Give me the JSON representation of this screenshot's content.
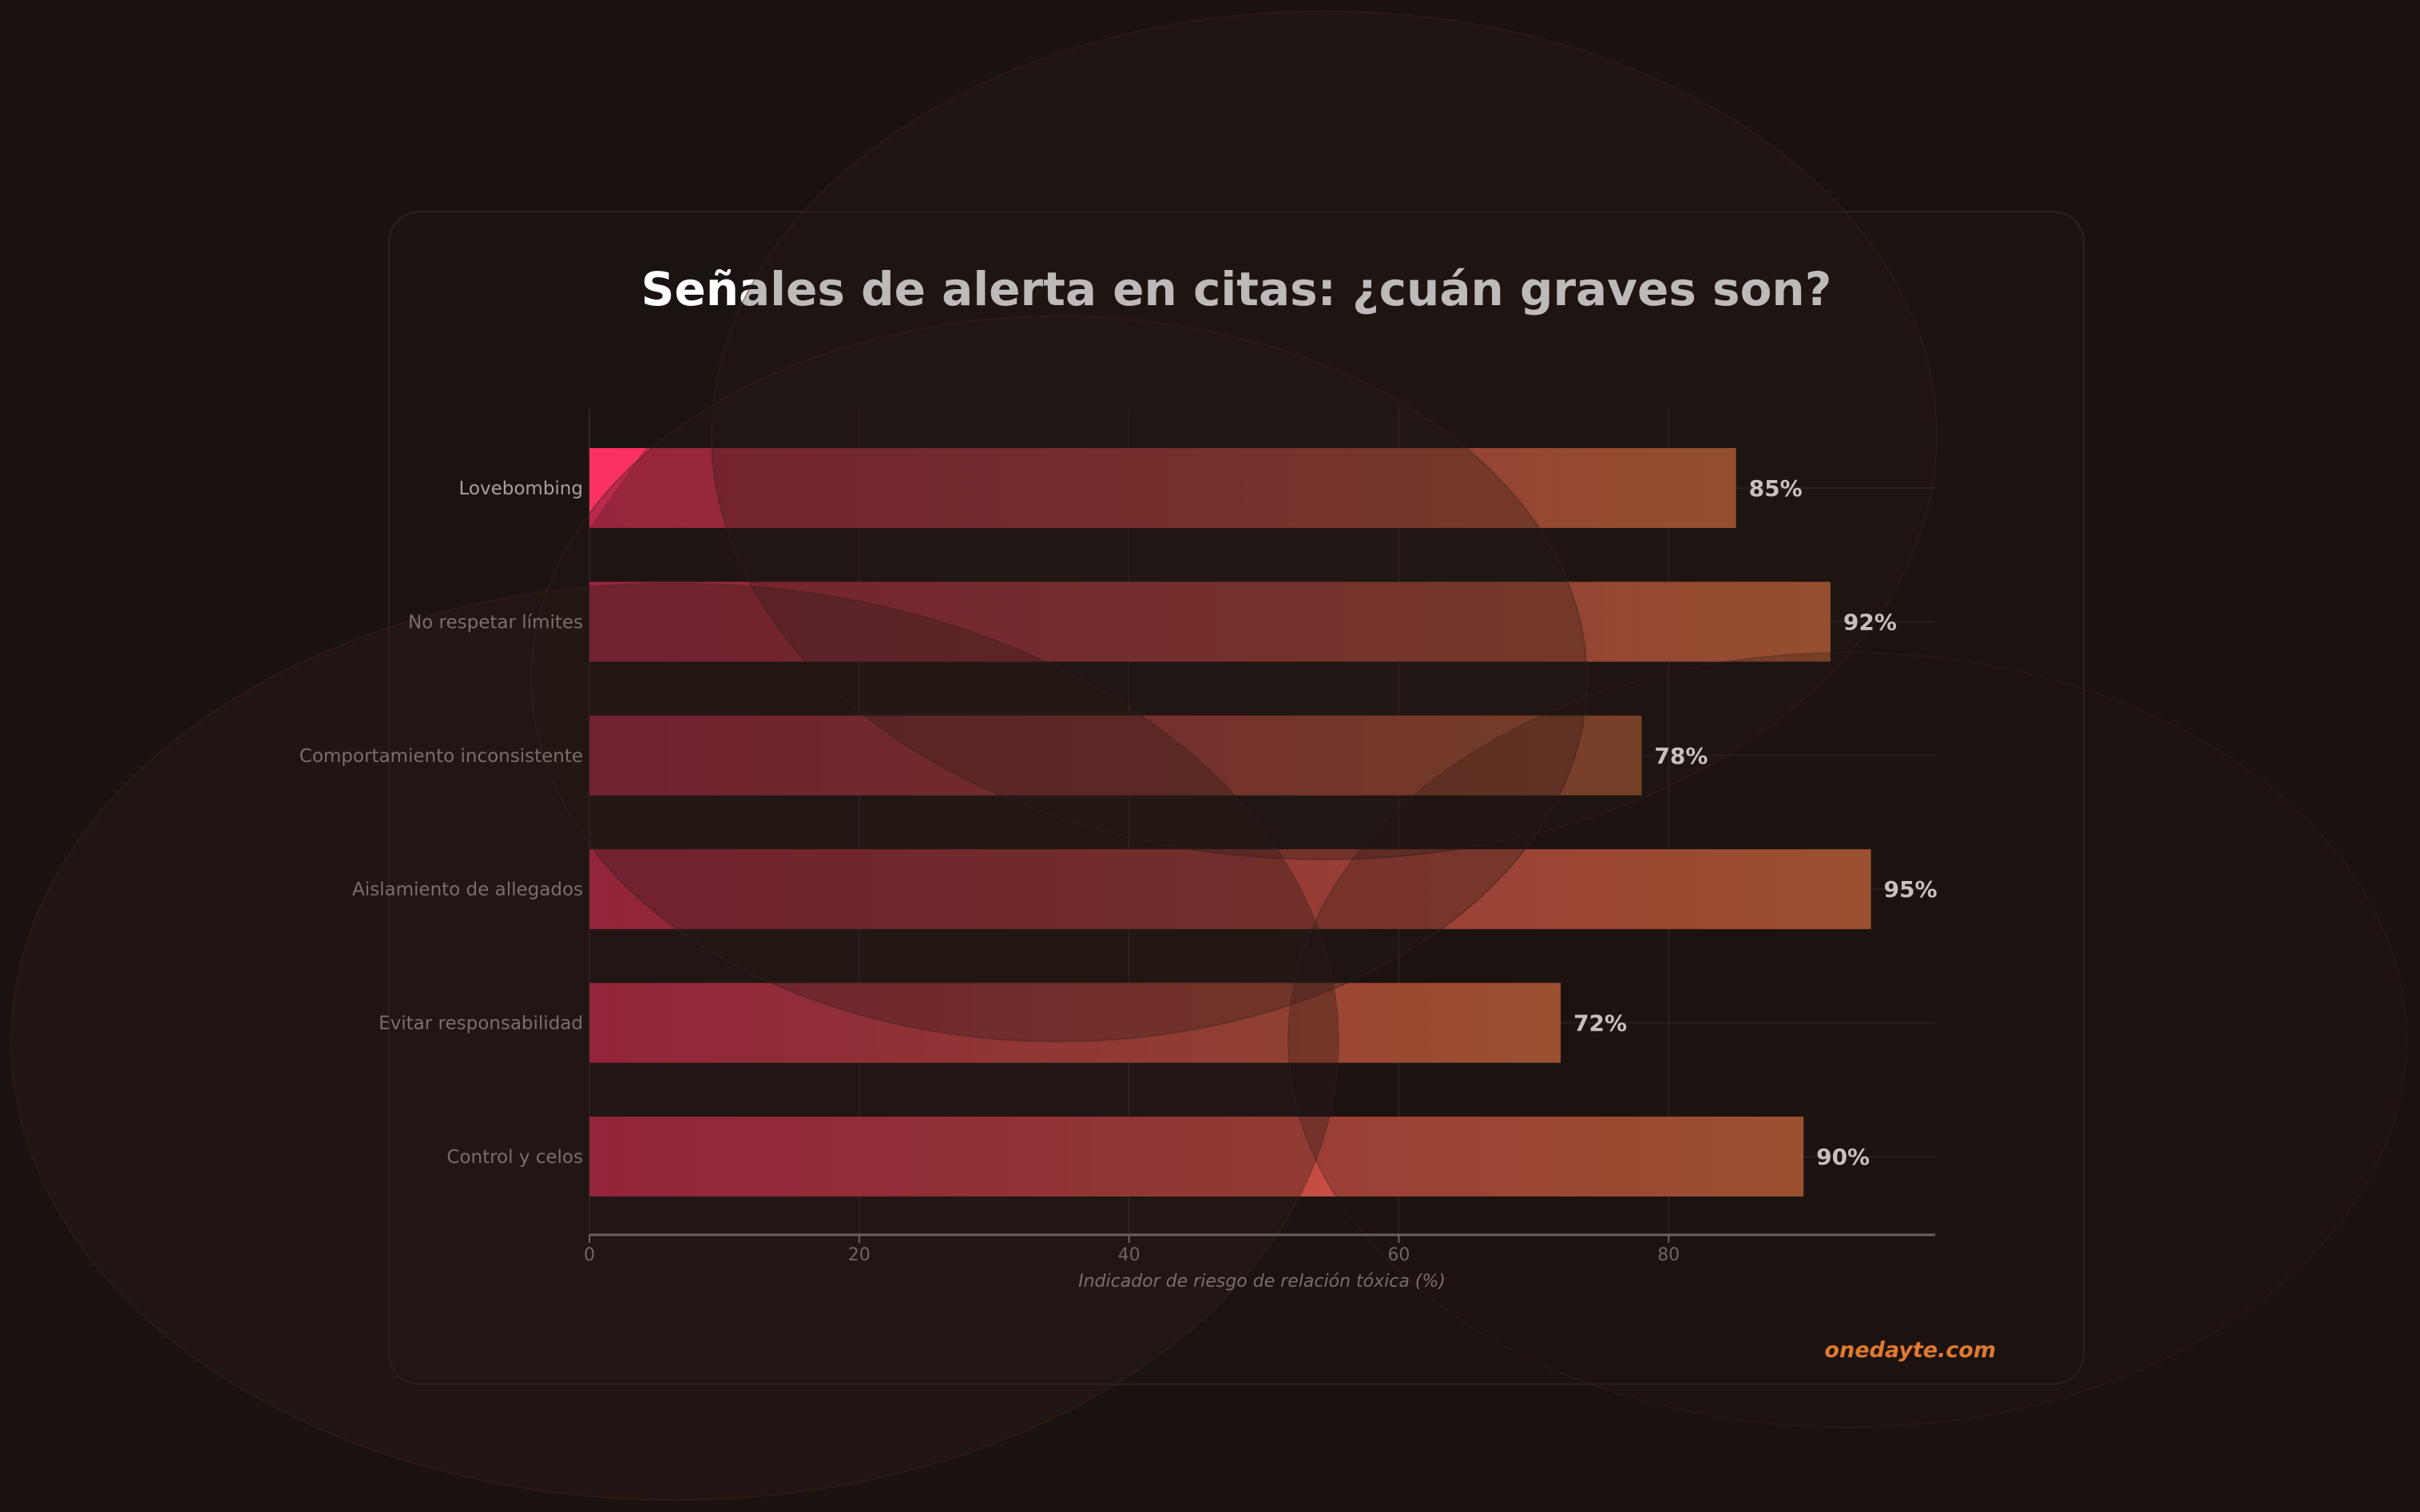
{
  "colors": {
    "background": "#1a1210",
    "card": "#1b1311",
    "bar_start": "#c8284f",
    "bar_end": "#c4663a",
    "highlight": "#ff3366",
    "watermark": "#e07a30"
  },
  "watermark": "onedayte.com",
  "chart_data": {
    "type": "bar",
    "orientation": "horizontal",
    "title": "Señales de alerta en citas: ¿cuán graves son?",
    "xlabel": "Indicador de riesgo de relación tóxica (%)",
    "ylabel": "",
    "xlim": [
      0,
      100
    ],
    "xticks": [
      0,
      20,
      40,
      60,
      80
    ],
    "grid": true,
    "categories": [
      "Lovebombing",
      "No respetar límites",
      "Comportamiento inconsistente",
      "Aislamiento de allegados",
      "Evitar responsabilidad",
      "Control y celos"
    ],
    "values": [
      85,
      92,
      78,
      95,
      72,
      90
    ],
    "value_labels": [
      "85%",
      "92%",
      "78%",
      "95%",
      "72%",
      "90%"
    ]
  }
}
